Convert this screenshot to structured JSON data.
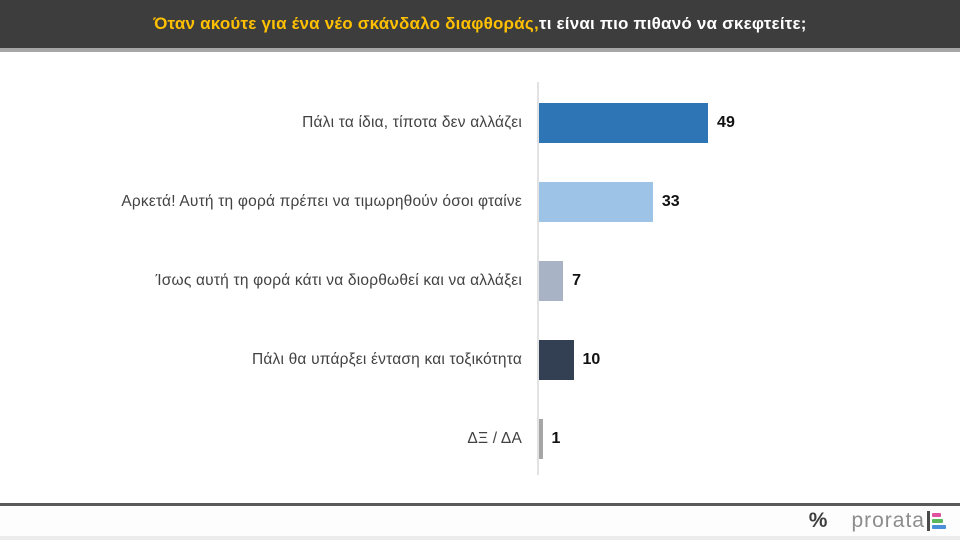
{
  "header": {
    "title_highlight": "Όταν ακούτε για ένα νέο σκάνδαλο διαφθοράς,",
    "title_rest": " τι είναι πιο πιθανό να σκεφτείτε;",
    "bg_color": "#3d3d3d",
    "highlight_color": "#ffc000",
    "text_color": "#ffffff"
  },
  "chart_data": {
    "type": "bar",
    "orientation": "horizontal",
    "title": "Όταν ακούτε για ένα νέο σκάνδαλο διαφθοράς, τι είναι πιο πιθανό να σκεφτείτε;",
    "categories": [
      "Πάλι τα ίδια, τίποτα δεν αλλάζει",
      "Αρκετά! Αυτή τη φορά πρέπει να τιμωρηθούν όσοι φταίνε",
      "Ίσως αυτή τη φορά κάτι να διορθωθεί και να αλλάξει",
      "Πάλι θα υπάρξει ένταση και τοξικότητα",
      "ΔΞ / ΔΑ"
    ],
    "values": [
      49,
      33,
      7,
      10,
      1
    ],
    "bar_colors": [
      "#2e75b6",
      "#9dc3e6",
      "#a9b3c6",
      "#333f52",
      "#a6a6a6"
    ],
    "value_suffix": "",
    "xlabel": "",
    "ylabel": "",
    "xlim": [
      0,
      120
    ],
    "grid": false,
    "legend": false,
    "data_labels": true
  },
  "footer": {
    "percent_symbol": "%",
    "brand": "prorata",
    "logo_bar_colors": [
      "#e0519e",
      "#5cb85c",
      "#4a90d9"
    ],
    "logo_bar_widths": [
      9,
      11,
      14
    ]
  }
}
